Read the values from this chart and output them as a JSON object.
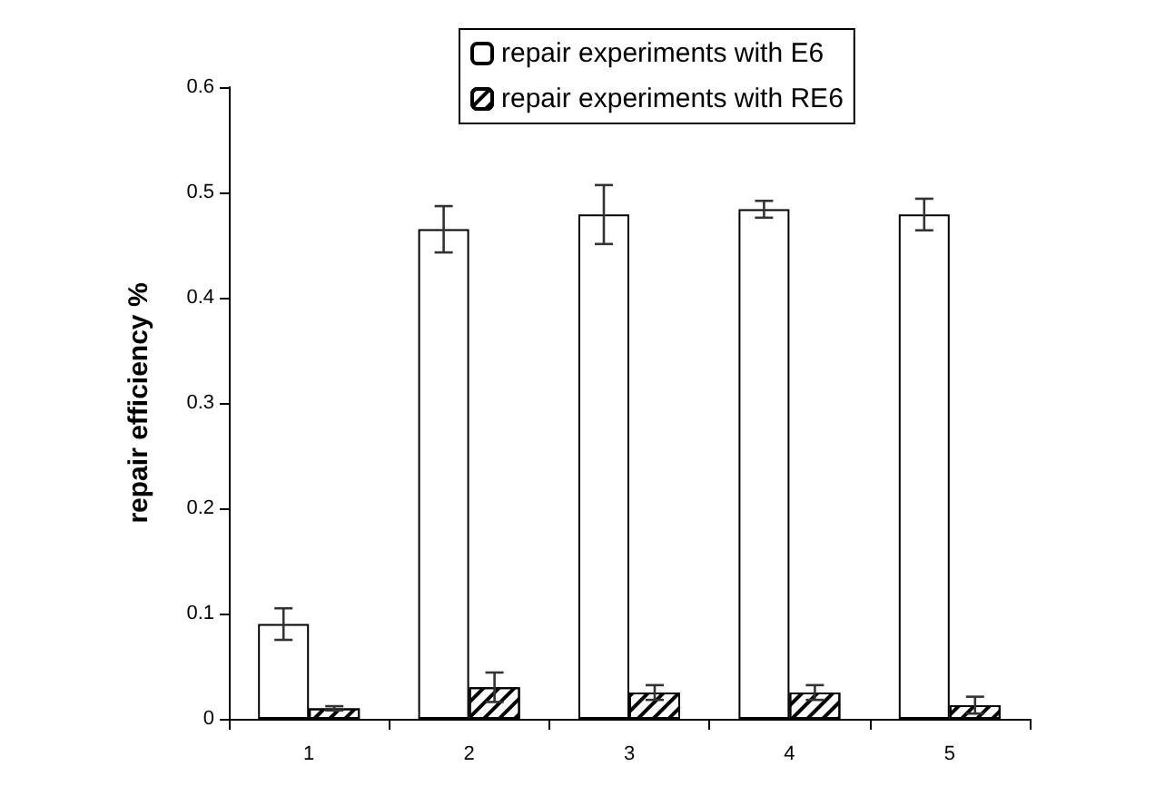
{
  "chart_data": {
    "type": "bar",
    "ylabel": "repair efficiency %",
    "categories": [
      "1",
      "2",
      "3",
      "4",
      "5"
    ],
    "series": [
      {
        "name": "repair experiments with E6",
        "color": "#ffffff",
        "values": [
          0.09,
          0.465,
          0.479,
          0.484,
          0.479
        ],
        "errors": [
          0.015,
          0.022,
          0.028,
          0.008,
          0.015
        ]
      },
      {
        "name": "repair experiments with RE6",
        "color": "#000000",
        "values": [
          0.01,
          0.03,
          0.025,
          0.025,
          0.013
        ],
        "errors": [
          0.002,
          0.014,
          0.007,
          0.007,
          0.008
        ]
      }
    ],
    "ylim": [
      0,
      0.6
    ],
    "yticks": [
      0,
      0.1,
      0.2,
      0.3,
      0.4,
      0.5,
      0.6
    ],
    "grid": false,
    "legend": "top"
  }
}
